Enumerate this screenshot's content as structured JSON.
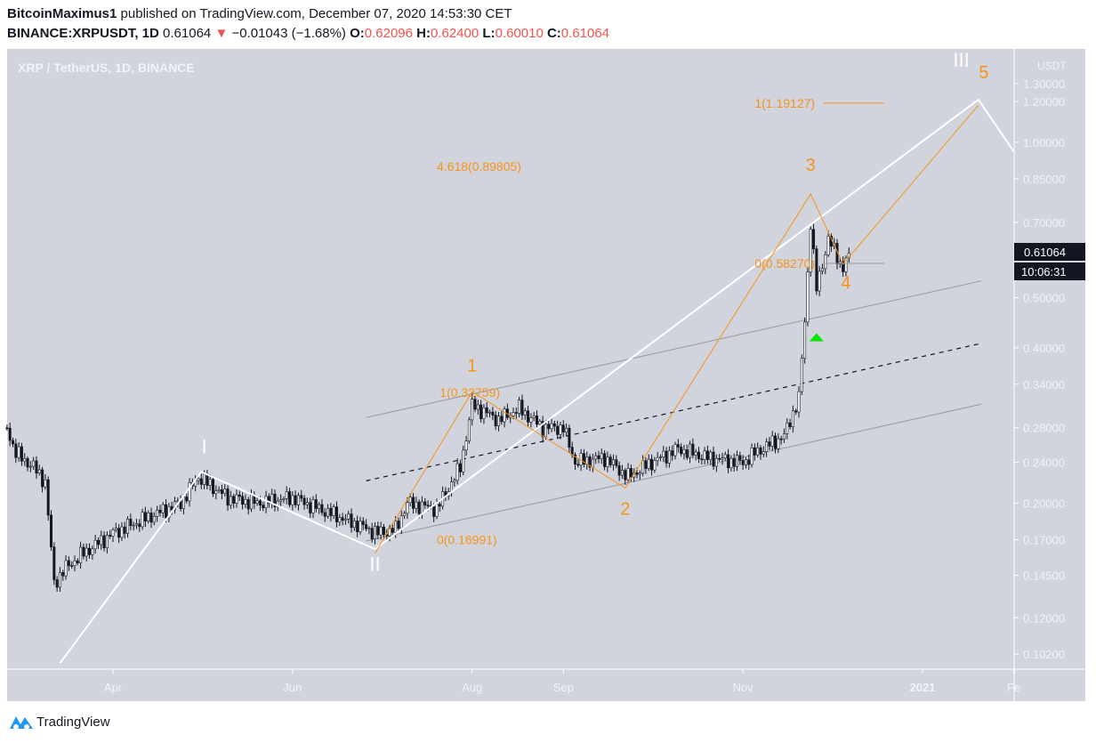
{
  "header": {
    "author": "BitcoinMaximus1",
    "published_text": "published on TradingView.com, December 07, 2020 14:53:30 CET",
    "symbol": "BINANCE:XRPUSDT, 1D",
    "last": "0.61064",
    "change": "−0.01043 (−1.68%)",
    "o_label": "O:",
    "o": "0.62096",
    "h_label": "H:",
    "h": "0.62400",
    "l_label": "L:",
    "l": "0.60010",
    "c_label": "C:",
    "c": "0.61064",
    "down_color": "#ef5350"
  },
  "footer": {
    "brand": "TradingView"
  },
  "chart_data": {
    "type": "candlestick",
    "title": "XRP / TetherUS, 1D, BINANCE",
    "currency_label": "USDT",
    "y_scale": "log",
    "ylim": [
      0.095,
      1.3
    ],
    "xlim": [
      "2020-02-25",
      "2021-02-05"
    ],
    "y_ticks": [
      "1.30000",
      "1.20000",
      "1.00000",
      "0.85000",
      "0.70000",
      "0.50000",
      "0.40000",
      "0.34000",
      "0.28000",
      "0.24000",
      "0.20000",
      "0.17000",
      "0.14500",
      "0.12000",
      "0.10200"
    ],
    "x_ticks": [
      {
        "label": "Apr",
        "date": "2020-04-01"
      },
      {
        "label": "Jun",
        "date": "2020-06-01"
      },
      {
        "label": "Aug",
        "date": "2020-08-01"
      },
      {
        "label": "Sep",
        "date": "2020-09-01"
      },
      {
        "label": "Nov",
        "date": "2020-11-01"
      },
      {
        "label": "2021",
        "date": "2021-01-01"
      },
      {
        "label": "Fe",
        "date": "2021-02-01"
      }
    ],
    "last_price_label": "0.61064",
    "countdown_label": "10:06:31",
    "approx_closes": [
      [
        "2020-02-25",
        0.28
      ],
      [
        "2020-02-28",
        0.25
      ],
      [
        "2020-03-05",
        0.235
      ],
      [
        "2020-03-09",
        0.22
      ],
      [
        "2020-03-12",
        0.14
      ],
      [
        "2020-03-16",
        0.15
      ],
      [
        "2020-03-22",
        0.16
      ],
      [
        "2020-04-01",
        0.175
      ],
      [
        "2020-04-15",
        0.19
      ],
      [
        "2020-04-24",
        0.2
      ],
      [
        "2020-04-30",
        0.225
      ],
      [
        "2020-05-10",
        0.205
      ],
      [
        "2020-05-20",
        0.2
      ],
      [
        "2020-06-01",
        0.205
      ],
      [
        "2020-06-15",
        0.19
      ],
      [
        "2020-06-30",
        0.175
      ],
      [
        "2020-07-06",
        0.178
      ],
      [
        "2020-07-10",
        0.2
      ],
      [
        "2020-07-20",
        0.195
      ],
      [
        "2020-07-28",
        0.235
      ],
      [
        "2020-08-01",
        0.31
      ],
      [
        "2020-08-10",
        0.29
      ],
      [
        "2020-08-17",
        0.305
      ],
      [
        "2020-08-25",
        0.28
      ],
      [
        "2020-09-01",
        0.28
      ],
      [
        "2020-09-05",
        0.24
      ],
      [
        "2020-09-15",
        0.245
      ],
      [
        "2020-09-23",
        0.225
      ],
      [
        "2020-10-01",
        0.24
      ],
      [
        "2020-10-10",
        0.255
      ],
      [
        "2020-10-20",
        0.245
      ],
      [
        "2020-11-01",
        0.24
      ],
      [
        "2020-11-05",
        0.25
      ],
      [
        "2020-11-15",
        0.27
      ],
      [
        "2020-11-20",
        0.32
      ],
      [
        "2020-11-22",
        0.45
      ],
      [
        "2020-11-24",
        0.7
      ],
      [
        "2020-11-26",
        0.52
      ],
      [
        "2020-11-30",
        0.65
      ],
      [
        "2020-12-03",
        0.6
      ],
      [
        "2020-12-05",
        0.57
      ],
      [
        "2020-12-07",
        0.61064
      ]
    ],
    "drawings": {
      "white_waves": {
        "color": "#ffffff",
        "points": [
          [
            "2020-03-14",
            0.098
          ],
          [
            "2020-05-01",
            0.23
          ],
          [
            "2020-06-29",
            0.163
          ],
          [
            "2021-01-20",
            1.21
          ],
          [
            "2021-02-01",
            0.96
          ]
        ],
        "labels": [
          {
            "text": "I",
            "date": "2020-05-02",
            "price": 0.25
          },
          {
            "text": "II",
            "date": "2020-06-29",
            "price": 0.148
          },
          {
            "text": "III",
            "date": "2021-01-19",
            "price": 1.4
          }
        ]
      },
      "orange_waves": {
        "color": "#f7931a",
        "points": [
          [
            "2020-06-29",
            0.16
          ],
          [
            "2020-08-01",
            0.329
          ],
          [
            "2020-09-22",
            0.214
          ],
          [
            "2020-11-24",
            0.794
          ],
          [
            "2020-12-05",
            0.581
          ],
          [
            "2021-01-20",
            1.18
          ]
        ],
        "labels": [
          {
            "text": "1",
            "date": "2020-08-01",
            "price": 0.36
          },
          {
            "text": "2",
            "date": "2020-09-22",
            "price": 0.19
          },
          {
            "text": "3",
            "date": "2020-11-24",
            "price": 0.88
          },
          {
            "text": "4",
            "date": "2020-12-06",
            "price": 0.52
          },
          {
            "text": "5",
            "date": "2021-01-20",
            "price": 1.33
          }
        ]
      },
      "fib_labels": [
        {
          "text": "4.618(0.89805)",
          "date": "2020-07-20",
          "price": 0.89805
        },
        {
          "text": "1(1.19127)",
          "date": "2020-11-05",
          "price": 1.19127,
          "line_to": "2020-12-19",
          "line_color": "#f7931a"
        },
        {
          "text": "0(0.58270)",
          "date": "2020-11-05",
          "price": 0.5827,
          "line_to": "2020-12-19",
          "line_color": "#999999"
        },
        {
          "text": "1(0.32759)",
          "date": "2020-07-21",
          "price": 0.32759
        },
        {
          "text": "0(0.16991)",
          "date": "2020-07-20",
          "price": 0.16991
        }
      ],
      "channel": {
        "upper": [
          [
            "2020-06-26",
            0.293
          ],
          [
            "2021-01-21",
            0.539
          ]
        ],
        "middle_dashed": [
          [
            "2020-06-26",
            0.221
          ],
          [
            "2021-01-21",
            0.408
          ]
        ],
        "lower": [
          [
            "2020-06-26",
            0.169
          ],
          [
            "2021-01-21",
            0.311
          ]
        ],
        "color": "#9598a1"
      },
      "signal_marker": {
        "shape": "triangle-up",
        "color": "#00e600",
        "date": "2020-11-26",
        "price": 0.42
      }
    },
    "colors": {
      "background": "#d1d4dc",
      "axis_text": "#f0f3fa",
      "candle_up": "#ffffff",
      "candle_down": "#131722",
      "label_bg": "#131722"
    }
  }
}
